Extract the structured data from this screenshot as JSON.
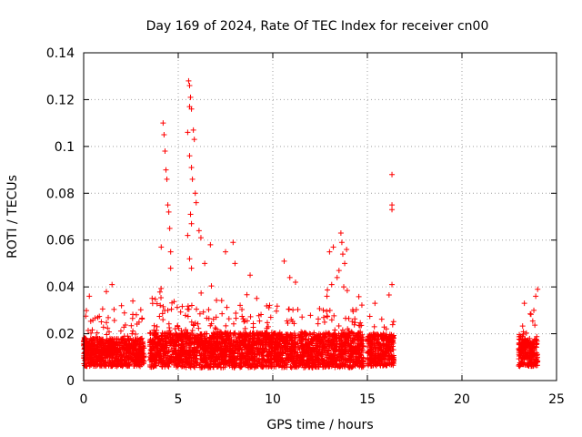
{
  "chart_data": {
    "type": "scatter",
    "title": "Day 169 of 2024, Rate Of TEC Index for receiver cn00",
    "xlabel": "GPS time / hours",
    "ylabel": "ROTI / TECUs",
    "xlim": [
      0,
      25
    ],
    "ylim": [
      0,
      0.14
    ],
    "x_ticks": [
      0,
      5,
      10,
      15,
      20,
      25
    ],
    "x_tick_labels": [
      "0",
      "5",
      "10",
      "15",
      "20",
      "25"
    ],
    "y_ticks": [
      0,
      0.02,
      0.04,
      0.06,
      0.08,
      0.1,
      0.12,
      0.14
    ],
    "y_tick_labels": [
      "0",
      "0.02",
      "0.04",
      "0.06",
      "0.08",
      "0.1",
      "0.12",
      "0.14"
    ],
    "grid": true,
    "marker": "+",
    "color": "#ff0000",
    "data_segments": [
      {
        "t_start": 0.0,
        "t_end": 3.2,
        "baseline": 0.012,
        "spread": 0.008
      },
      {
        "t_start": 3.5,
        "t_end": 14.8,
        "baseline": 0.013,
        "spread": 0.01
      },
      {
        "t_start": 15.0,
        "t_end": 16.4,
        "baseline": 0.013,
        "spread": 0.009
      },
      {
        "t_start": 23.0,
        "t_end": 24.0,
        "baseline": 0.012,
        "spread": 0.008
      }
    ],
    "notable_points": [
      {
        "x": 0.3,
        "y": 0.036
      },
      {
        "x": 1.2,
        "y": 0.038
      },
      {
        "x": 1.5,
        "y": 0.041
      },
      {
        "x": 2.0,
        "y": 0.032
      },
      {
        "x": 2.6,
        "y": 0.034
      },
      {
        "x": 4.1,
        "y": 0.057
      },
      {
        "x": 4.2,
        "y": 0.11
      },
      {
        "x": 4.25,
        "y": 0.105
      },
      {
        "x": 4.3,
        "y": 0.098
      },
      {
        "x": 4.35,
        "y": 0.09
      },
      {
        "x": 4.4,
        "y": 0.086
      },
      {
        "x": 4.45,
        "y": 0.075
      },
      {
        "x": 4.5,
        "y": 0.072
      },
      {
        "x": 4.55,
        "y": 0.065
      },
      {
        "x": 4.6,
        "y": 0.055
      },
      {
        "x": 4.6,
        "y": 0.048
      },
      {
        "x": 5.55,
        "y": 0.128
      },
      {
        "x": 5.6,
        "y": 0.126
      },
      {
        "x": 5.6,
        "y": 0.117
      },
      {
        "x": 5.65,
        "y": 0.121
      },
      {
        "x": 5.7,
        "y": 0.116
      },
      {
        "x": 5.5,
        "y": 0.106
      },
      {
        "x": 5.8,
        "y": 0.107
      },
      {
        "x": 5.85,
        "y": 0.103
      },
      {
        "x": 5.6,
        "y": 0.096
      },
      {
        "x": 5.7,
        "y": 0.091
      },
      {
        "x": 5.75,
        "y": 0.086
      },
      {
        "x": 5.9,
        "y": 0.08
      },
      {
        "x": 5.95,
        "y": 0.076
      },
      {
        "x": 5.65,
        "y": 0.071
      },
      {
        "x": 5.7,
        "y": 0.067
      },
      {
        "x": 6.1,
        "y": 0.064
      },
      {
        "x": 6.2,
        "y": 0.061
      },
      {
        "x": 5.5,
        "y": 0.062
      },
      {
        "x": 5.6,
        "y": 0.052
      },
      {
        "x": 5.7,
        "y": 0.048
      },
      {
        "x": 6.4,
        "y": 0.05
      },
      {
        "x": 6.7,
        "y": 0.058
      },
      {
        "x": 7.5,
        "y": 0.055
      },
      {
        "x": 7.9,
        "y": 0.059
      },
      {
        "x": 8.0,
        "y": 0.05
      },
      {
        "x": 8.8,
        "y": 0.045
      },
      {
        "x": 10.6,
        "y": 0.051
      },
      {
        "x": 10.9,
        "y": 0.044
      },
      {
        "x": 11.2,
        "y": 0.042
      },
      {
        "x": 13.0,
        "y": 0.055
      },
      {
        "x": 13.2,
        "y": 0.057
      },
      {
        "x": 13.6,
        "y": 0.063
      },
      {
        "x": 13.65,
        "y": 0.059
      },
      {
        "x": 13.7,
        "y": 0.054
      },
      {
        "x": 13.8,
        "y": 0.05
      },
      {
        "x": 13.9,
        "y": 0.056
      },
      {
        "x": 13.5,
        "y": 0.047
      },
      {
        "x": 13.4,
        "y": 0.044
      },
      {
        "x": 13.75,
        "y": 0.04
      },
      {
        "x": 16.3,
        "y": 0.088
      },
      {
        "x": 16.3,
        "y": 0.075
      },
      {
        "x": 16.3,
        "y": 0.073
      },
      {
        "x": 16.3,
        "y": 0.041
      },
      {
        "x": 15.4,
        "y": 0.033
      },
      {
        "x": 23.3,
        "y": 0.033
      },
      {
        "x": 24.0,
        "y": 0.039
      },
      {
        "x": 23.9,
        "y": 0.036
      },
      {
        "x": 23.8,
        "y": 0.03
      }
    ]
  }
}
